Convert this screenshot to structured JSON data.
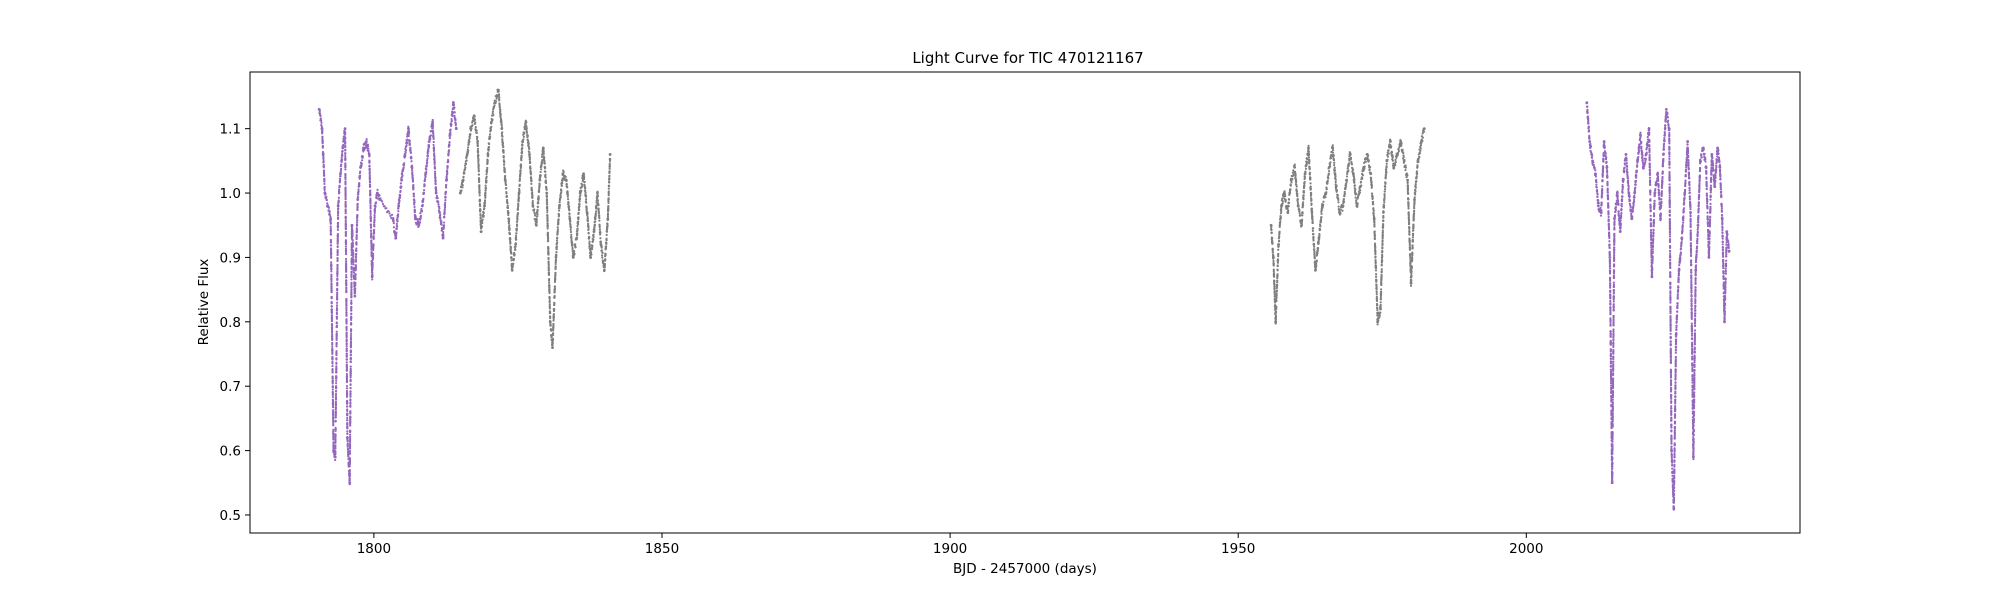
{
  "chart_data": {
    "type": "scatter",
    "title": "Light Curve for TIC 470121167",
    "xlabel": "BJD - 2457000 (days)",
    "ylabel": "Relative Flux",
    "xlim": [
      1778.5,
      2047.5
    ],
    "ylim": [
      0.472,
      1.188
    ],
    "x_ticks": [
      1800,
      1850,
      1900,
      1950,
      2000
    ],
    "y_ticks": [
      0.5,
      0.6,
      0.7,
      0.8,
      0.9,
      1.0,
      1.1
    ],
    "x_tick_labels": [
      "1800",
      "1850",
      "1900",
      "1950",
      "2000"
    ],
    "y_tick_labels": [
      "0.5",
      "0.6",
      "0.7",
      "0.8",
      "0.9",
      "1.0",
      "1.1"
    ],
    "grid": false,
    "colors": {
      "purple": "#9467bd",
      "gray": "#7f7f7f"
    },
    "series": [
      {
        "color": "#9467bd",
        "x": [
          1790.5,
          1791.0,
          1791.2,
          1791.5,
          1792.0,
          1792.5,
          1793.0,
          1793.3,
          1793.8,
          1794.2,
          1794.6,
          1795.0,
          1795.4,
          1795.8,
          1796.2,
          1796.7,
          1797.2,
          1797.7,
          1798.2,
          1798.7,
          1799.2,
          1799.7,
          1800.2,
          1800.6,
          1801.0,
          1803.3,
          1803.8,
          1804.3,
          1804.8,
          1805.4,
          1806.0,
          1806.6,
          1807.2,
          1807.8,
          1808.4,
          1809.0,
          1809.6,
          1810.2,
          1810.8,
          1811.4,
          1812.0,
          1812.6,
          1813.2,
          1813.8,
          1814.3
        ],
        "y": [
          1.13,
          1.1,
          1.06,
          1.0,
          0.98,
          0.96,
          0.6,
          0.59,
          0.98,
          1.03,
          1.07,
          1.1,
          0.62,
          0.55,
          0.95,
          0.84,
          0.99,
          1.04,
          1.07,
          1.08,
          1.06,
          0.87,
          0.98,
          1.0,
          0.99,
          0.96,
          0.93,
          0.98,
          1.02,
          1.06,
          1.1,
          1.04,
          0.96,
          0.95,
          0.98,
          1.03,
          1.08,
          1.11,
          1.0,
          0.97,
          0.93,
          1.02,
          1.09,
          1.14,
          1.1
        ]
      },
      {
        "color": "#7f7f7f",
        "x": [
          1815.0,
          1815.5,
          1816.2,
          1816.8,
          1817.4,
          1818.0,
          1818.6,
          1819.2,
          1819.8,
          1820.4,
          1821.0,
          1821.6,
          1822.2,
          1822.8,
          1823.4,
          1824.0,
          1824.6,
          1825.2,
          1825.8,
          1826.4,
          1827.0,
          1827.6,
          1828.2,
          1828.8,
          1829.4,
          1830.0,
          1830.6,
          1831.0,
          1831.6,
          1832.2,
          1832.8,
          1833.4,
          1834.0,
          1834.6,
          1835.2,
          1835.8,
          1836.4,
          1837.0,
          1837.6,
          1838.2,
          1838.8,
          1839.4,
          1840.0,
          1840.6,
          1841.0
        ],
        "y": [
          1.0,
          1.02,
          1.06,
          1.1,
          1.12,
          1.08,
          0.94,
          0.98,
          1.06,
          1.11,
          1.14,
          1.16,
          1.1,
          1.02,
          0.96,
          0.88,
          0.92,
          1.0,
          1.08,
          1.11,
          1.06,
          0.98,
          0.95,
          1.02,
          1.07,
          1.0,
          0.8,
          0.76,
          0.9,
          0.98,
          1.03,
          1.02,
          0.96,
          0.9,
          0.93,
          1.0,
          1.03,
          0.97,
          0.9,
          0.94,
          1.0,
          0.92,
          0.88,
          0.96,
          1.06
        ]
      },
      {
        "color": "#7f7f7f",
        "x": [
          1955.7,
          1956.1,
          1956.5,
          1957.0,
          1957.5,
          1958.0,
          1958.6,
          1959.2,
          1959.8,
          1960.4,
          1961.0,
          1961.6,
          1962.2,
          1962.8,
          1963.4,
          1964.0,
          1964.6,
          1965.2,
          1965.8,
          1966.4,
          1967.0,
          1967.6,
          1968.2,
          1968.8,
          1969.4,
          1970.0,
          1970.6,
          1971.2,
          1971.8,
          1972.4,
          1973.0,
          1973.6,
          1974.2,
          1974.7,
          1975.2,
          1975.8,
          1976.4,
          1977.0,
          1977.6,
          1978.2,
          1978.8,
          1979.4,
          1980.0,
          1980.6,
          1981.2,
          1981.8,
          1982.3
        ],
        "y": [
          0.95,
          0.9,
          0.8,
          0.92,
          0.98,
          1.0,
          0.97,
          1.02,
          1.04,
          0.98,
          0.95,
          1.03,
          1.07,
          0.97,
          0.88,
          0.93,
          0.98,
          1.0,
          1.04,
          1.07,
          1.01,
          0.97,
          0.98,
          1.02,
          1.06,
          1.03,
          0.98,
          1.01,
          1.04,
          1.06,
          1.03,
          0.96,
          0.8,
          0.82,
          0.97,
          1.05,
          1.08,
          1.04,
          1.06,
          1.08,
          1.05,
          1.02,
          0.86,
          0.99,
          1.05,
          1.08,
          1.1
        ]
      },
      {
        "color": "#9467bd",
        "x": [
          2010.5,
          2011.0,
          2011.5,
          2012.0,
          2012.5,
          2013.0,
          2013.5,
          2014.0,
          2014.5,
          2014.9,
          2015.3,
          2015.8,
          2016.3,
          2016.8,
          2017.3,
          2017.8,
          2018.3,
          2018.8,
          2019.3,
          2019.8,
          2020.3,
          2020.8,
          2021.3,
          2021.8,
          2022.3,
          2022.8,
          2023.3,
          2023.8,
          2024.3,
          2024.8,
          2025.2,
          2025.6,
          2026.0,
          2026.5,
          2027.0,
          2027.5,
          2028.0,
          2028.5,
          2029.0,
          2029.4,
          2029.8,
          2030.2,
          2030.7,
          2031.2,
          2031.7,
          2032.2,
          2032.7,
          2033.2,
          2033.6,
          2034.0,
          2034.4,
          2034.8,
          2035.2
        ],
        "y": [
          1.14,
          1.08,
          1.05,
          1.03,
          0.98,
          0.97,
          1.08,
          1.04,
          0.9,
          0.55,
          0.96,
          1.0,
          0.94,
          1.02,
          1.06,
          1.0,
          0.96,
          1.0,
          1.05,
          1.09,
          1.04,
          1.06,
          1.1,
          0.87,
          1.0,
          1.03,
          0.96,
          1.06,
          1.13,
          1.1,
          0.6,
          0.51,
          0.78,
          0.88,
          0.93,
          1.0,
          1.08,
          0.97,
          0.59,
          0.88,
          0.95,
          1.05,
          1.07,
          1.04,
          0.9,
          1.06,
          1.01,
          1.07,
          1.04,
          0.96,
          0.8,
          0.94,
          0.91
        ]
      }
    ]
  }
}
